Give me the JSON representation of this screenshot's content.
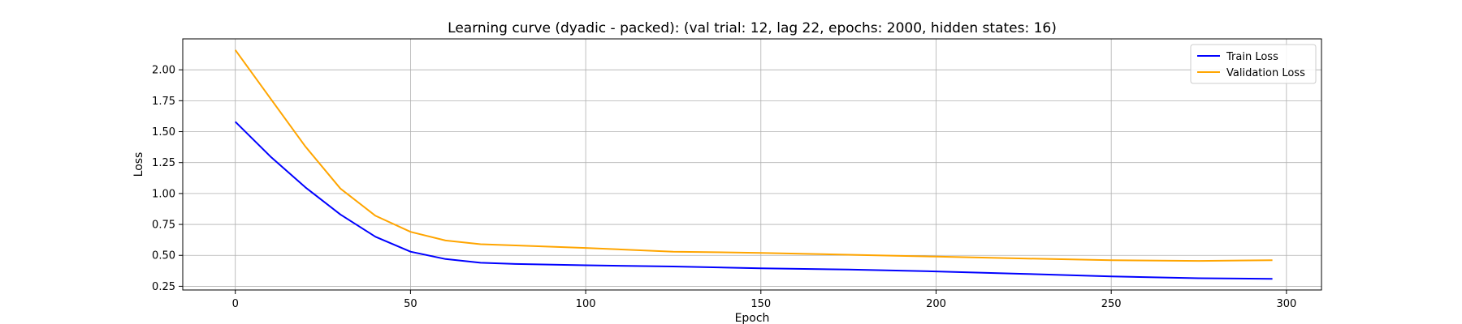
{
  "chart_data": {
    "type": "line",
    "title": "Learning curve (dyadic - packed): (val trial: 12, lag 22, epochs: 2000, hidden states: 16)",
    "xlabel": "Epoch",
    "ylabel": "Loss",
    "xlim": [
      -15,
      310
    ],
    "ylim": [
      0.22,
      2.25
    ],
    "xticks": [
      0,
      50,
      100,
      150,
      200,
      250,
      300
    ],
    "yticks": [
      0.25,
      0.5,
      0.75,
      1.0,
      1.25,
      1.5,
      1.75,
      2.0
    ],
    "ytick_labels": [
      "0.25",
      "0.50",
      "0.75",
      "1.00",
      "1.25",
      "1.50",
      "1.75",
      "2.00"
    ],
    "grid": true,
    "legend": "upper right",
    "series": [
      {
        "name": "Train Loss",
        "color": "#0000ff",
        "x": [
          0,
          10,
          20,
          30,
          40,
          50,
          60,
          70,
          80,
          100,
          125,
          150,
          175,
          200,
          225,
          250,
          275,
          296
        ],
        "values": [
          1.58,
          1.3,
          1.05,
          0.83,
          0.65,
          0.53,
          0.47,
          0.44,
          0.43,
          0.42,
          0.41,
          0.395,
          0.385,
          0.37,
          0.35,
          0.33,
          0.315,
          0.31
        ]
      },
      {
        "name": "Validation Loss",
        "color": "#ffa500",
        "x": [
          0,
          10,
          20,
          30,
          40,
          50,
          60,
          70,
          80,
          100,
          125,
          150,
          175,
          200,
          225,
          250,
          275,
          296
        ],
        "values": [
          2.16,
          1.77,
          1.38,
          1.04,
          0.82,
          0.69,
          0.62,
          0.59,
          0.58,
          0.56,
          0.53,
          0.52,
          0.505,
          0.49,
          0.475,
          0.46,
          0.455,
          0.46
        ]
      }
    ]
  }
}
